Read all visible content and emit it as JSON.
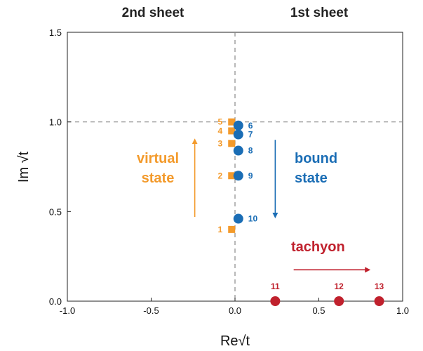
{
  "chart_data": {
    "type": "scatter",
    "title": "",
    "headers": {
      "left": "2nd sheet",
      "right": "1st sheet"
    },
    "xlabel": "Re√t",
    "ylabel": "Im √t",
    "xlim": [
      -1.0,
      1.0
    ],
    "ylim": [
      0.0,
      1.5
    ],
    "xticks": [
      -1.0,
      -0.5,
      0.0,
      0.5,
      1.0
    ],
    "xtick_labels": [
      "-1.0",
      "-0.5",
      "0.0",
      "0.5",
      "1.0"
    ],
    "yticks": [
      0.0,
      0.5,
      1.0,
      1.5
    ],
    "ytick_labels": [
      "0.0",
      "0.5",
      "1.0",
      "1.5"
    ],
    "grid": false,
    "reference_lines": {
      "x": 0.0,
      "y": 1.0
    },
    "colors": {
      "virtual": "#F39A2B",
      "bound": "#1A6DB5",
      "tachyon": "#C0212D"
    },
    "series": [
      {
        "marker": "square",
        "points": [
          {
            "x": -0.02,
            "y": 0.4,
            "label": "1"
          },
          {
            "x": -0.02,
            "y": 0.7,
            "label": "2"
          },
          {
            "x": -0.02,
            "y": 0.88,
            "label": "3"
          },
          {
            "x": -0.02,
            "y": 0.95,
            "label": "4"
          },
          {
            "x": -0.02,
            "y": 1.0,
            "label": "5"
          }
        ]
      },
      {
        "marker": "circle",
        "points": [
          {
            "x": 0.02,
            "y": 0.98,
            "label": "6"
          },
          {
            "x": 0.02,
            "y": 0.93,
            "label": "7"
          },
          {
            "x": 0.02,
            "y": 0.84,
            "label": "8"
          },
          {
            "x": 0.02,
            "y": 0.7,
            "label": "9"
          },
          {
            "x": 0.02,
            "y": 0.46,
            "label": "10"
          }
        ]
      },
      {
        "marker": "circle",
        "points": [
          {
            "x": 0.24,
            "y": 0.0,
            "label": "11"
          },
          {
            "x": 0.62,
            "y": 0.0,
            "label": "12"
          },
          {
            "x": 0.86,
            "y": 0.0,
            "label": "13"
          }
        ]
      }
    ],
    "annotations": [
      {
        "lines": [
          "virtual",
          "state"
        ],
        "color": "virtual",
        "arrow": {
          "from": [
            -0.24,
            0.47
          ],
          "to": [
            -0.24,
            0.9
          ]
        }
      },
      {
        "lines": [
          "bound",
          "state"
        ],
        "color": "bound",
        "arrow": {
          "from": [
            0.24,
            0.9
          ],
          "to": [
            0.24,
            0.47
          ]
        }
      },
      {
        "lines": [
          "tachyon"
        ],
        "color": "tachyon",
        "arrow": {
          "from": [
            0.35,
            0.175
          ],
          "to": [
            0.8,
            0.175
          ]
        }
      }
    ]
  }
}
